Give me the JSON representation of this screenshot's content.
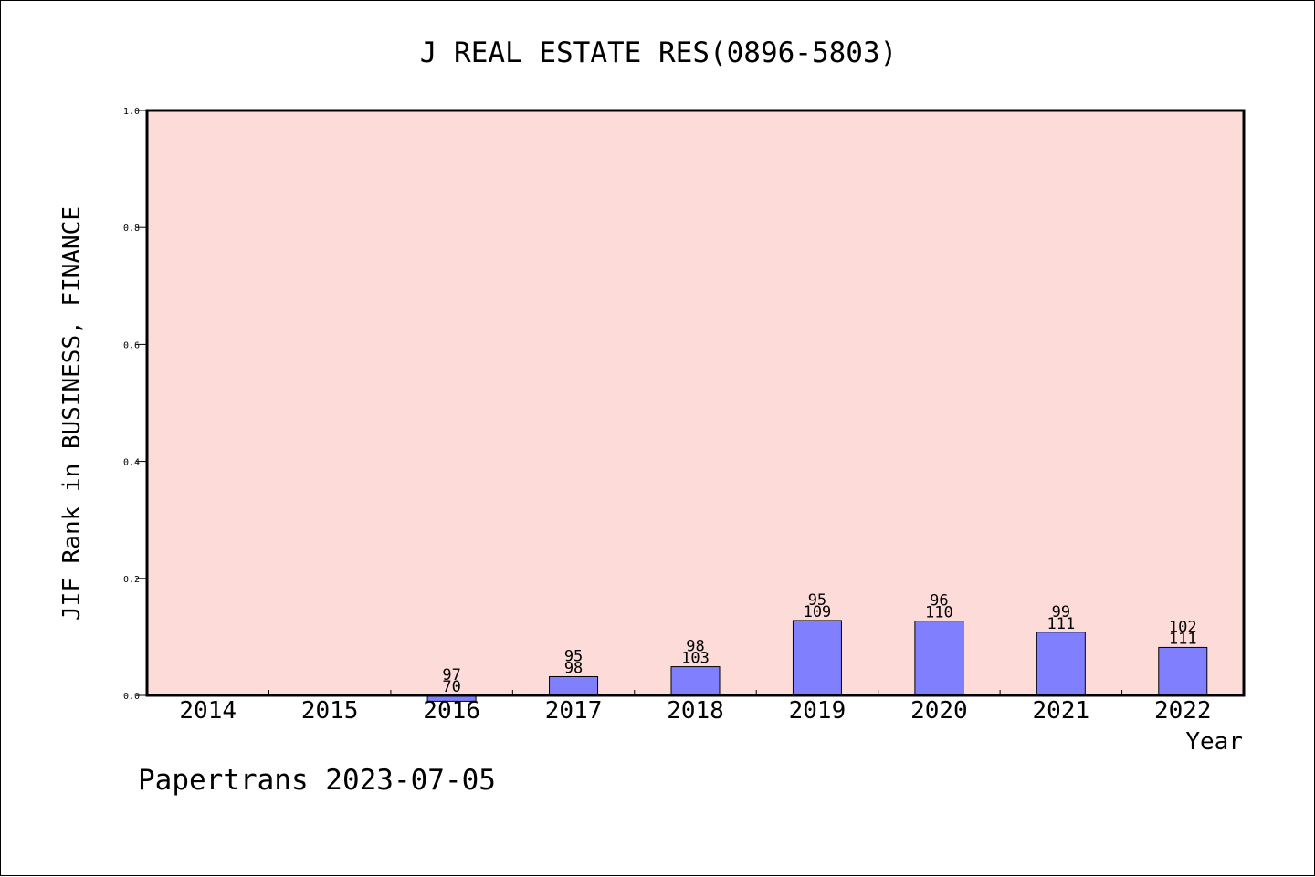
{
  "chart_data": {
    "type": "bar",
    "title": "J REAL ESTATE RES(0896-5803)",
    "xlabel": "Year",
    "ylabel": "JIF Rank in BUSINESS, FINANCE",
    "ylim": [
      0.0,
      1.0
    ],
    "yticks": [
      "0.0",
      "0.2",
      "0.4",
      "0.6",
      "0.8",
      "1.0"
    ],
    "grid": false,
    "categories": [
      "2014",
      "2015",
      "2016",
      "2017",
      "2018",
      "2019",
      "2020",
      "2021",
      "2022"
    ],
    "values": [
      null,
      null,
      -0.01,
      0.032,
      0.049,
      0.128,
      0.127,
      0.108,
      0.082
    ],
    "labels_top": [
      null,
      null,
      "97",
      "95",
      "98",
      "95",
      "96",
      "99",
      "102"
    ],
    "labels_bottom": [
      null,
      null,
      "70",
      "98",
      "103",
      "109",
      "110",
      "111",
      "111"
    ],
    "colors": {
      "plot_background": "#fddbd8",
      "bar_fill": "#8080ff",
      "axis": "#000000"
    }
  },
  "footer": "Papertrans 2023-07-05"
}
